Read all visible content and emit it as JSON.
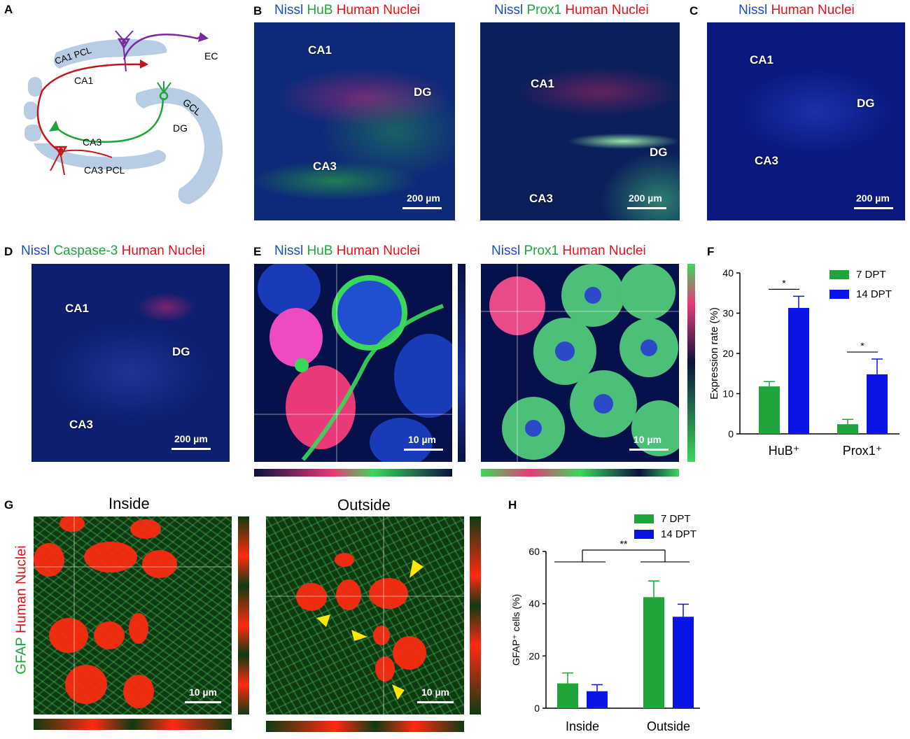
{
  "panels": {
    "A": {
      "label": "A",
      "regions": [
        "CA1 PCL",
        "CA1",
        "EC",
        "GCL",
        "DG",
        "CA3",
        "CA3 PCL"
      ],
      "colors": {
        "layer": "#b8cde3",
        "ca1_neuron": "#7a2a9e",
        "ca3_neuron": "#c4161c",
        "dg_neuron": "#1fa53a"
      }
    },
    "B": {
      "label": "B",
      "left": {
        "channels": [
          "Nissl",
          "HuB",
          "Human Nuclei"
        ],
        "regions": [
          "CA1",
          "DG",
          "CA3"
        ],
        "scale": "200 µm"
      },
      "right": {
        "channels": [
          "Nissl",
          "Prox1",
          "Human Nuclei"
        ],
        "regions": [
          "CA1",
          "DG",
          "CA3"
        ],
        "scale": "200 µm"
      }
    },
    "C": {
      "label": "C",
      "channels": [
        "Nissl",
        "Human Nuclei"
      ],
      "regions": [
        "CA1",
        "DG",
        "CA3"
      ],
      "scale": "200 µm"
    },
    "D": {
      "label": "D",
      "channels": [
        "Nissl",
        "Caspase-3",
        "Human Nuclei"
      ],
      "regions": [
        "CA1",
        "DG",
        "CA3"
      ],
      "scale": "200 µm"
    },
    "E": {
      "label": "E",
      "left": {
        "channels": [
          "Nissl",
          "HuB",
          "Human Nuclei"
        ],
        "scale": "10 µm"
      },
      "right": {
        "channels": [
          "Nissl",
          "Prox1",
          "Human Nuclei"
        ],
        "scale": "10 µm"
      }
    },
    "F": {
      "label": "F"
    },
    "G": {
      "label": "G",
      "side_label": [
        "GFAP",
        "Human Nuclei"
      ],
      "left": {
        "title": "Inside",
        "scale": "10 µm"
      },
      "right": {
        "title": "Outside",
        "scale": "10 µm"
      }
    },
    "H": {
      "label": "H"
    }
  },
  "colors": {
    "green": "#1fa53a",
    "blue": "#0a14e6",
    "nissl_blue": "#1a4fc4",
    "red": "#e5121b"
  },
  "chart_data": [
    {
      "id": "F",
      "type": "bar",
      "categories": [
        "HuB⁺",
        "Prox1⁺"
      ],
      "series": [
        {
          "name": "7  DPT",
          "values": [
            11.8,
            2.4
          ],
          "errors": [
            1.2,
            1.2
          ],
          "color": "#1fa53a"
        },
        {
          "name": "14 DPT",
          "values": [
            31.3,
            14.8
          ],
          "errors": [
            2.9,
            3.8
          ],
          "color": "#0a14e6"
        }
      ],
      "ylabel": "Expression  rate (%)",
      "ylim": [
        0,
        40
      ],
      "yticks": [
        "0",
        "10",
        "20",
        "30",
        "40"
      ],
      "significance": [
        "*",
        "*"
      ],
      "legend": "top-right"
    },
    {
      "id": "H",
      "type": "bar",
      "categories": [
        "Inside",
        "Outside"
      ],
      "series": [
        {
          "name": "7  DPT",
          "values": [
            9.5,
            42.5
          ],
          "errors": [
            4.0,
            6.2
          ],
          "color": "#1fa53a"
        },
        {
          "name": "14 DPT",
          "values": [
            6.5,
            35.0
          ],
          "errors": [
            2.5,
            4.8
          ],
          "color": "#0a14e6"
        }
      ],
      "ylabel": "GFAP⁺ cells (%)",
      "ylim": [
        0,
        60
      ],
      "yticks": [
        "0",
        "20",
        "40",
        "60"
      ],
      "significance": [
        "**"
      ],
      "legend": "top"
    }
  ]
}
